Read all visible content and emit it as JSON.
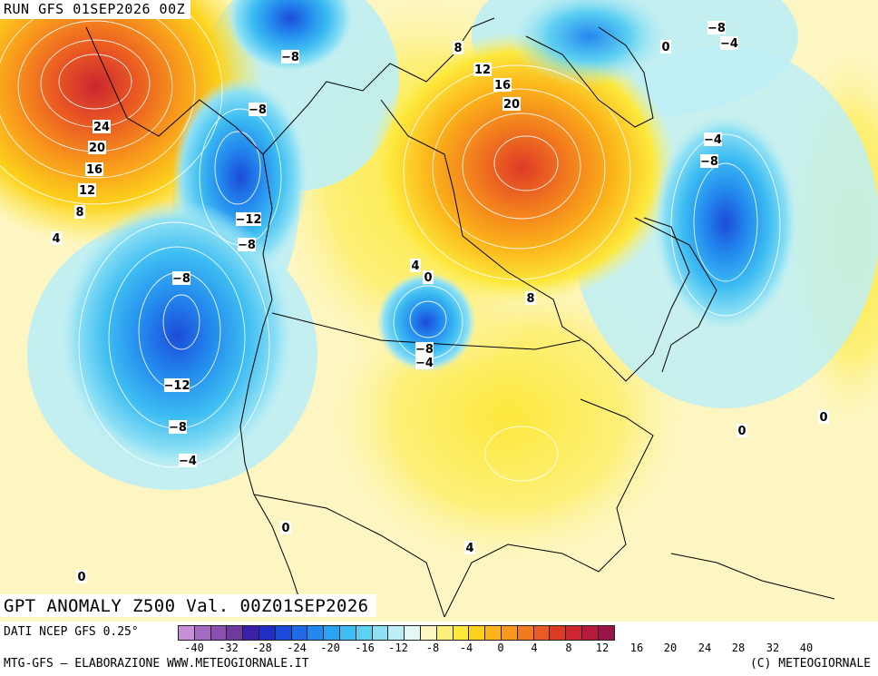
{
  "run_label": "RUN GFS 01SEP2026 00Z",
  "title": "GPT ANOMALY Z500 Val. 00Z01SEP2026",
  "footer": {
    "source": "DATI NCEP GFS 0.25°",
    "elaboration": "MTG-GFS — ELABORAZIONE WWW.METEOGIORNALE.IT",
    "copyright": "(C) METEOGIORNALE"
  },
  "colorbar": {
    "colors": [
      "#c78fd6",
      "#a66cc3",
      "#8a4fb0",
      "#6e3a9e",
      "#3b1fa8",
      "#1f2fc4",
      "#1c4bd9",
      "#1f6ae6",
      "#2389ee",
      "#2aa3f2",
      "#3dbdf2",
      "#5ed0f2",
      "#8ee0f4",
      "#bdeef6",
      "#e4f8f8",
      "#fdf6c2",
      "#fdf07a",
      "#fde83c",
      "#fcd21c",
      "#fbb51a",
      "#f8981c",
      "#f27a1e",
      "#ea5a22",
      "#dd3a26",
      "#cc2630",
      "#b51a3c",
      "#9a1448"
    ],
    "tick_labels": [
      "-40",
      "-32",
      "-28",
      "-24",
      "-20",
      "-16",
      "-12",
      "-8",
      "-4",
      "0",
      "4",
      "8",
      "12",
      "16",
      "20",
      "24",
      "28",
      "32",
      "40"
    ]
  },
  "contour_labels": [
    "24",
    "20",
    "16",
    "12",
    "8",
    "4",
    "-8",
    "-8",
    "-12",
    "-8",
    "-8",
    "-12",
    "-8",
    "-4",
    "8",
    "12",
    "16",
    "20",
    "8",
    "4",
    "0",
    "-8",
    "-4",
    "-8",
    "-4",
    "0",
    "-4",
    "-8",
    "0",
    "0",
    "0",
    "4",
    "0"
  ]
}
